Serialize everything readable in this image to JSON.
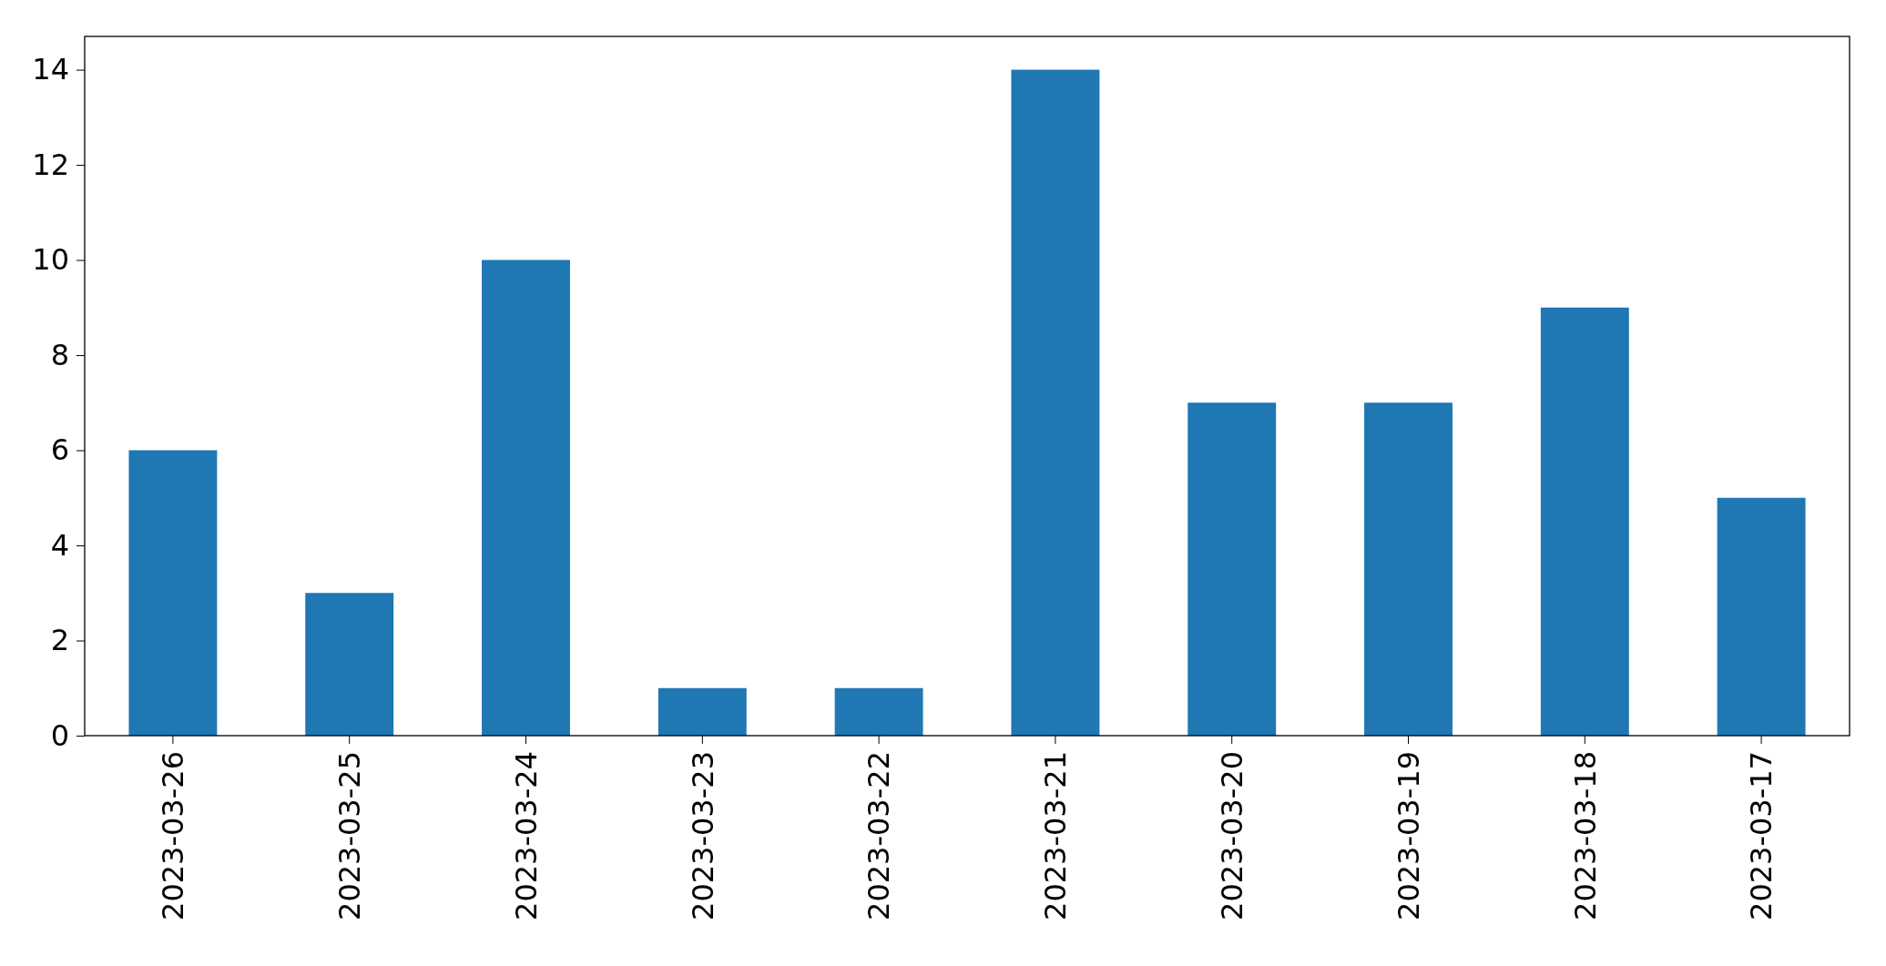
{
  "chart_data": {
    "type": "bar",
    "categories": [
      "2023-03-26",
      "2023-03-25",
      "2023-03-24",
      "2023-03-23",
      "2023-03-22",
      "2023-03-21",
      "2023-03-20",
      "2023-03-19",
      "2023-03-18",
      "2023-03-17"
    ],
    "values": [
      6,
      3,
      10,
      1,
      1,
      14,
      7,
      7,
      9,
      5
    ],
    "color": "#1f77b4",
    "ylim": [
      0,
      14.7
    ],
    "yticks": [
      0,
      2,
      4,
      6,
      8,
      10,
      12,
      14
    ],
    "grid": false
  }
}
